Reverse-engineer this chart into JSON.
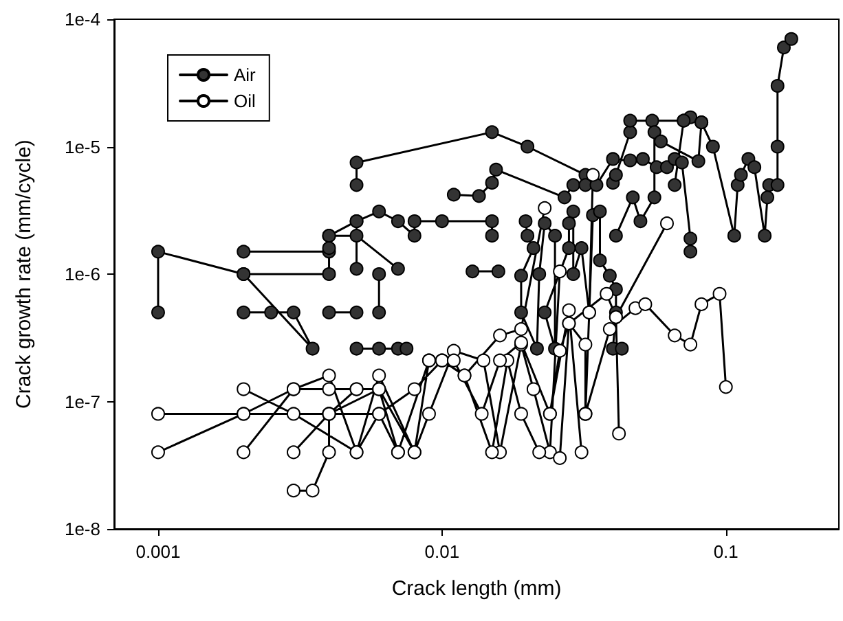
{
  "chart_data": {
    "type": "line",
    "xlabel": "Crack length (mm)",
    "ylabel": "Crack growth rate (mm/cycle)",
    "log": "xy",
    "grid": false,
    "legend": "top left",
    "marker": "circle",
    "line_style": "solid",
    "xlim": [
      0.0007,
      0.25
    ],
    "xticks": [
      0.001,
      0.01,
      0.1
    ],
    "ylim": [
      1e-08,
      0.0001
    ],
    "yticks": [
      {
        "value": 1e-08,
        "label": "1e-8"
      },
      {
        "value": 1e-07,
        "label": "1e-7"
      },
      {
        "value": 1e-06,
        "label": "1e-6"
      },
      {
        "value": 1e-05,
        "label": "1e-5"
      },
      {
        "value": 0.0001,
        "label": "1e-4"
      }
    ],
    "series": [
      {
        "name": "Air",
        "color": "#333333",
        "x": [
          0.001,
          0.001,
          0.002,
          0.0035,
          0.003,
          0.0025,
          0.002,
          null,
          0.002,
          0.004,
          0.004,
          0.002,
          null,
          0.004,
          0.005,
          null,
          0.005,
          0.005,
          0.015,
          0.02,
          0.032,
          null,
          0.004,
          0.004,
          0.005,
          0.006,
          0.007,
          0.008,
          0.008,
          0.01,
          0.015,
          0.015,
          null,
          0.004,
          0.005,
          0.007,
          null,
          0.005,
          0.005,
          null,
          0.006,
          0.006,
          null,
          0.005,
          0.006,
          0.007,
          0.0075,
          null,
          0.0128,
          0.0158,
          null,
          0.011,
          0.0135,
          0.015,
          0.0155,
          0.027,
          0.029,
          0.032,
          null,
          0.0197,
          0.02,
          0.021,
          0.019,
          0.019,
          0.0216,
          0.022,
          0.023,
          0.025,
          0.025,
          0.023,
          0.028,
          0.028,
          0.029,
          0.029,
          0.031,
          0.033,
          0.034,
          0.036,
          0.036,
          0.039,
          0.041,
          0.041,
          0.04,
          0.043,
          null,
          0.035,
          0.04,
          0.046,
          0.051,
          0.057,
          0.062,
          0.066,
          0.07,
          0.075,
          0.075,
          null,
          0.04,
          0.041,
          0.046,
          0.046,
          0.055,
          0.071,
          0.075,
          0.082,
          0.09,
          0.107,
          0.11,
          0.113,
          0.12,
          0.126,
          0.137,
          0.14,
          0.142,
          0.152,
          0.152,
          0.152,
          0.16,
          0.17,
          null,
          0.041,
          0.047,
          0.05,
          0.056,
          0.056,
          0.059,
          0.08,
          0.082,
          null,
          0.066,
          0.071
        ],
        "values": [
          5e-07,
          1.5e-06,
          1e-06,
          2.6e-07,
          5e-07,
          5e-07,
          5e-07,
          null,
          1e-06,
          1e-06,
          1.5e-06,
          1.5e-06,
          null,
          5e-07,
          5e-07,
          null,
          5e-06,
          7.5e-06,
          1.3e-05,
          1e-05,
          6e-06,
          null,
          1.6e-06,
          2e-06,
          2.6e-06,
          3.1e-06,
          2.6e-06,
          2e-06,
          2.6e-06,
          2.6e-06,
          2.6e-06,
          2e-06,
          null,
          2e-06,
          2e-06,
          1.1e-06,
          null,
          2.6e-06,
          1.1e-06,
          null,
          1e-06,
          5e-07,
          null,
          2.6e-07,
          2.6e-07,
          2.6e-07,
          2.6e-07,
          null,
          1.05e-06,
          1.05e-06,
          null,
          4.2e-06,
          4.1e-06,
          5.2e-06,
          6.6e-06,
          4e-06,
          5e-06,
          5e-06,
          null,
          2.6e-06,
          2e-06,
          1.6e-06,
          9.7e-07,
          5e-07,
          2.6e-07,
          1e-06,
          2.5e-06,
          2e-06,
          2.6e-07,
          5e-07,
          1.6e-06,
          2.5e-06,
          3.1e-06,
          1e-06,
          1.6e-06,
          5e-07,
          2.9e-06,
          3.1e-06,
          1.28e-06,
          9.7e-07,
          7.6e-07,
          5e-07,
          2.6e-07,
          2.6e-07,
          null,
          5e-06,
          8e-06,
          7.8e-06,
          8e-06,
          6.9e-06,
          6.9e-06,
          8e-06,
          7.5e-06,
          1.9e-06,
          1.5e-06,
          null,
          5.2e-06,
          6e-06,
          1.3e-05,
          1.6e-05,
          1.6e-05,
          1.6e-05,
          1.7e-05,
          1.55e-05,
          1e-05,
          2e-06,
          5e-06,
          6e-06,
          8e-06,
          6.9e-06,
          2e-06,
          4e-06,
          5e-06,
          5e-06,
          1e-05,
          3e-05,
          6e-05,
          7e-05,
          null,
          2e-06,
          4e-06,
          2.6e-06,
          4e-06,
          1.3e-05,
          1.1e-05,
          7.7e-06,
          1.55e-05,
          null,
          5e-06,
          1.6e-05
        ]
      },
      {
        "name": "Oil",
        "color": "#ffffff",
        "x": [
          0.001,
          0.002,
          0.004,
          0.006,
          0.008,
          0.01,
          0.012,
          0.016,
          0.019,
          0.023,
          null,
          0.001,
          0.002,
          0.003,
          0.004,
          0.005,
          0.006,
          0.007,
          null,
          0.002,
          0.003,
          0.005,
          0.006,
          0.008,
          0.009,
          0.011,
          0.014,
          0.016,
          0.019,
          0.021,
          0.024,
          0.026,
          null,
          0.002,
          0.003,
          0.004,
          0.005,
          0.006,
          0.008,
          0.009,
          0.01,
          0.012,
          0.015,
          0.017,
          0.019,
          0.022,
          0.026,
          0.028,
          0.032,
          0.032,
          null,
          0.003,
          0.004,
          0.006,
          0.007,
          0.009,
          0.011,
          0.0138,
          0.016,
          0.019,
          0.024,
          0.028,
          0.031,
          null,
          0.003,
          0.0035,
          0.004,
          0.004,
          0.005,
          null,
          0.024,
          0.026,
          0.028,
          0.038,
          0.041,
          0.042,
          null,
          0.032,
          0.039,
          0.048,
          0.052,
          0.066,
          0.075,
          0.082,
          0.095,
          0.1,
          null,
          0.034,
          0.033,
          0.032,
          null,
          0.041,
          0.062
        ],
        "values": [
          8e-08,
          8e-08,
          8e-08,
          8e-08,
          1.25e-07,
          2.1e-07,
          1.6e-07,
          3.3e-07,
          3.7e-07,
          3.3e-06,
          null,
          4e-08,
          8e-08,
          1.25e-07,
          1.6e-07,
          4e-08,
          8e-08,
          4e-08,
          null,
          1.25e-07,
          8e-08,
          4e-08,
          1.6e-07,
          4e-08,
          8e-08,
          2.5e-07,
          2.1e-07,
          4e-08,
          2.8e-07,
          1.25e-07,
          4e-08,
          1.05e-06,
          null,
          4e-08,
          1.25e-07,
          1.25e-07,
          1.25e-07,
          1.25e-07,
          4e-08,
          2.1e-07,
          2.1e-07,
          1.6e-07,
          4e-08,
          2.1e-07,
          8e-08,
          4e-08,
          3.6e-08,
          4.1e-07,
          2.8e-07,
          8e-08,
          null,
          4e-08,
          8e-08,
          1.25e-07,
          4e-08,
          2.1e-07,
          2.1e-07,
          8e-08,
          2.1e-07,
          2.9e-07,
          8e-08,
          5.2e-07,
          4e-08,
          null,
          2e-08,
          2e-08,
          4e-08,
          8e-08,
          1.25e-07,
          null,
          8e-08,
          2.5e-07,
          4.1e-07,
          7e-07,
          4.6e-07,
          5.6e-08,
          null,
          8e-08,
          3.7e-07,
          5.4e-07,
          5.8e-07,
          3.3e-07,
          2.8e-07,
          5.8e-07,
          7e-07,
          1.3e-07,
          null,
          6e-06,
          5e-07,
          8e-08,
          null,
          4.6e-07,
          2.5e-06
        ]
      }
    ]
  }
}
